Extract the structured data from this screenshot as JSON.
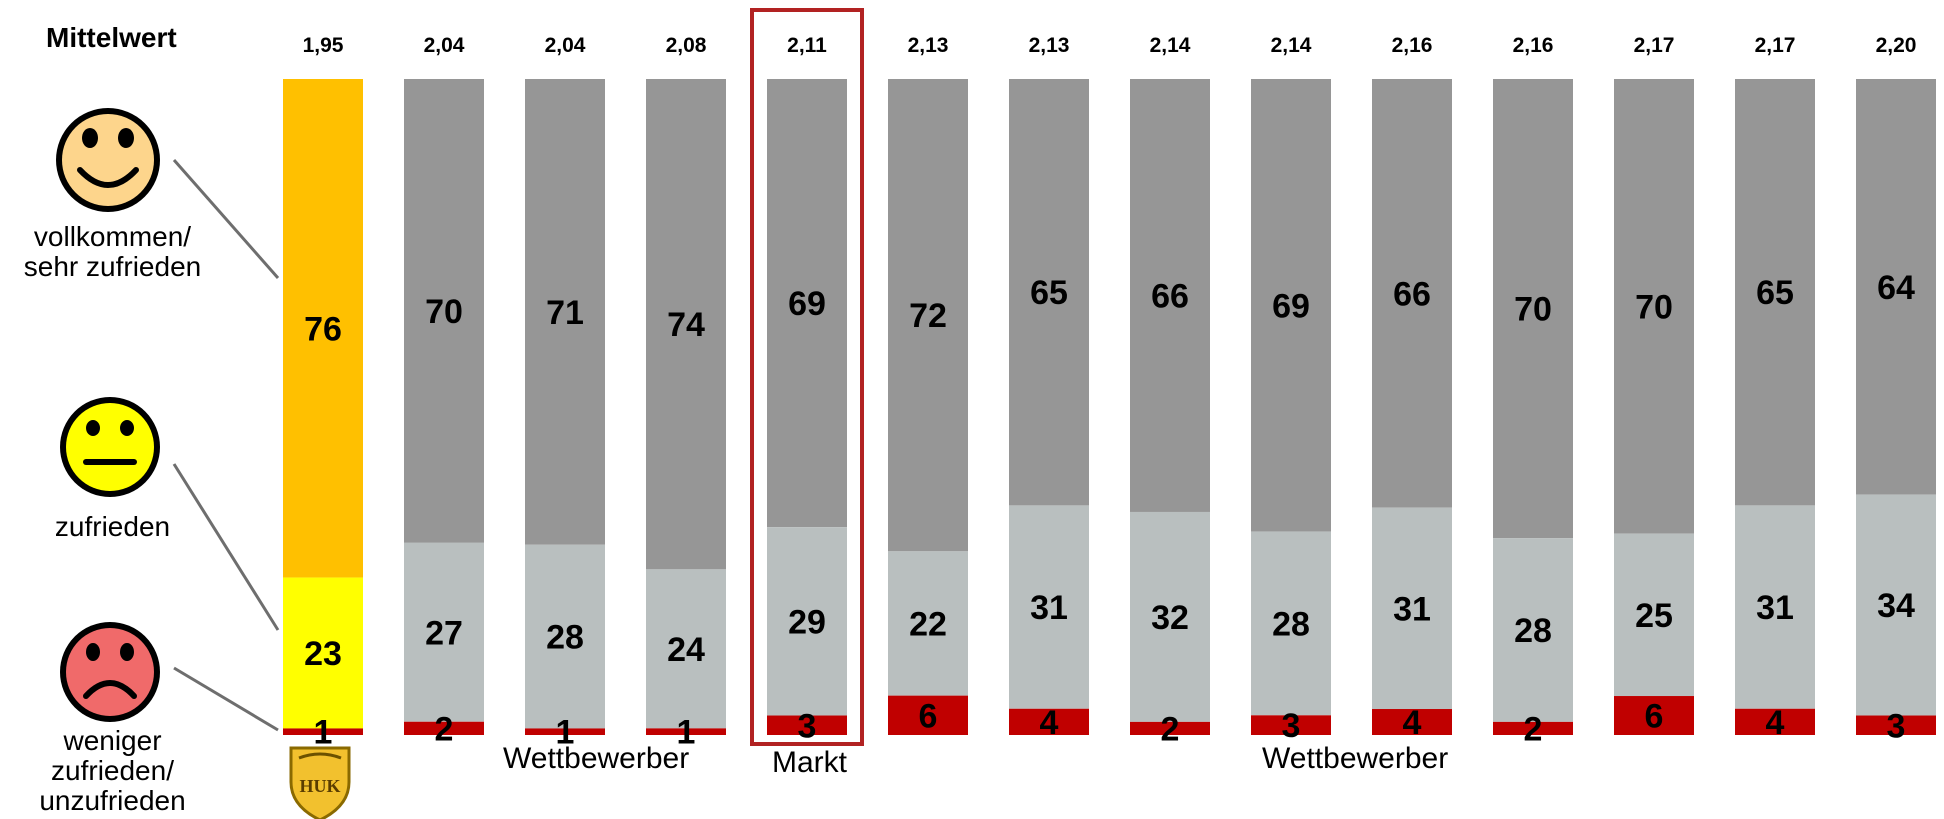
{
  "chart_data": {
    "type": "bar",
    "stacked": true,
    "mean_label": "Mittelwert",
    "means": [
      "1,95",
      "2,04",
      "2,04",
      "2,08",
      "2,11",
      "2,13",
      "2,13",
      "2,14",
      "2,14",
      "2,16",
      "2,16",
      "2,17",
      "2,17",
      "2,20"
    ],
    "series": [
      {
        "values": [
          76,
          70,
          71,
          74,
          69,
          72,
          65,
          66,
          69,
          66,
          70,
          70,
          65,
          64
        ]
      },
      {
        "values": [
          23,
          27,
          28,
          24,
          29,
          22,
          31,
          32,
          28,
          31,
          28,
          25,
          31,
          34
        ]
      },
      {
        "values": [
          1,
          2,
          1,
          1,
          3,
          6,
          4,
          2,
          3,
          4,
          2,
          6,
          4,
          3
        ]
      }
    ],
    "colors": {
      "top_default": "#969696",
      "mid_default": "#b9bfbf",
      "low_default": "#c00000",
      "top_highlight": "#ffc000",
      "mid_highlight": "#ffff00",
      "market_frame": "#b22222"
    },
    "highlight_index": 0,
    "market_index": 4
  },
  "legend": {
    "top": {
      "icon": "happy-face-icon",
      "label_line1": "vollkommen/",
      "label_line2": "sehr zufrieden"
    },
    "mid": {
      "icon": "neutral-face-icon",
      "label": "zufrieden"
    },
    "low": {
      "icon": "sad-face-icon",
      "label_line1": "weniger",
      "label_line2": "zufrieden/",
      "label_line3": "unzufrieden"
    }
  },
  "groups": {
    "competitors_left": "Wettbewerber",
    "market": "Markt",
    "competitors_right": "Wettbewerber"
  },
  "logo": {
    "text": "HUK",
    "icon": "huk-shield-logo"
  }
}
